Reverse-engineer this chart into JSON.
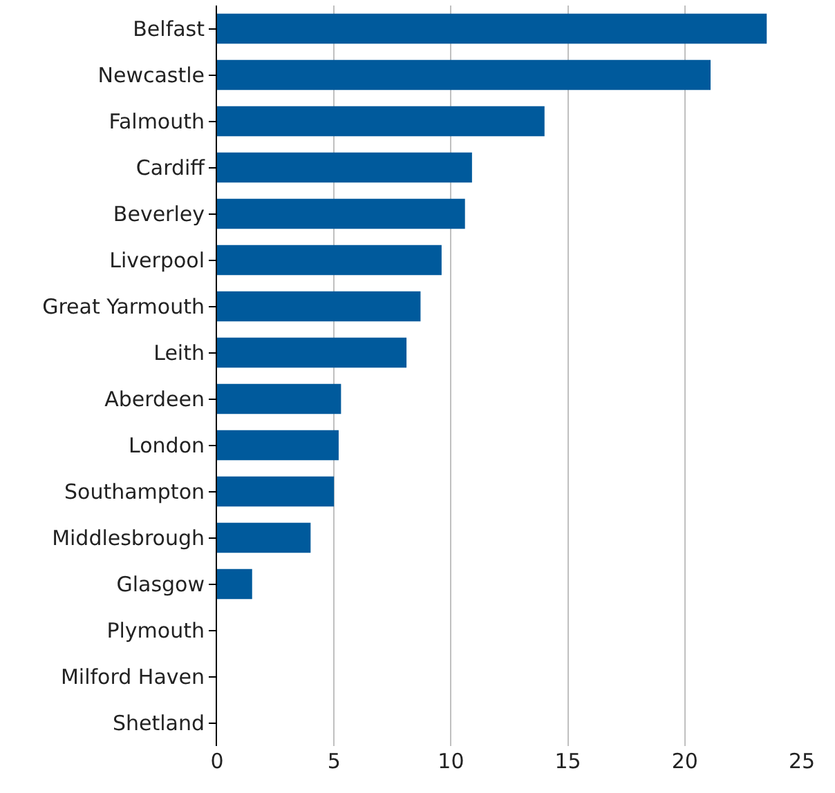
{
  "chart_data": {
    "type": "bar",
    "orientation": "horizontal",
    "categories": [
      "Belfast",
      "Newcastle",
      "Falmouth",
      "Cardiff",
      "Beverley",
      "Liverpool",
      "Great Yarmouth",
      "Leith",
      "Aberdeen",
      "London",
      "Southampton",
      "Middlesbrough",
      "Glasgow",
      "Plymouth",
      "Milford Haven",
      "Shetland"
    ],
    "values": [
      23.5,
      21.1,
      14.0,
      10.9,
      10.6,
      9.6,
      8.7,
      8.1,
      5.3,
      5.2,
      5.0,
      4.0,
      1.5,
      0,
      0,
      0
    ],
    "color": "#005a9c",
    "xlim": [
      0,
      25
    ],
    "xticks": [
      0,
      5,
      10,
      15,
      20,
      25
    ],
    "grid": "x"
  }
}
